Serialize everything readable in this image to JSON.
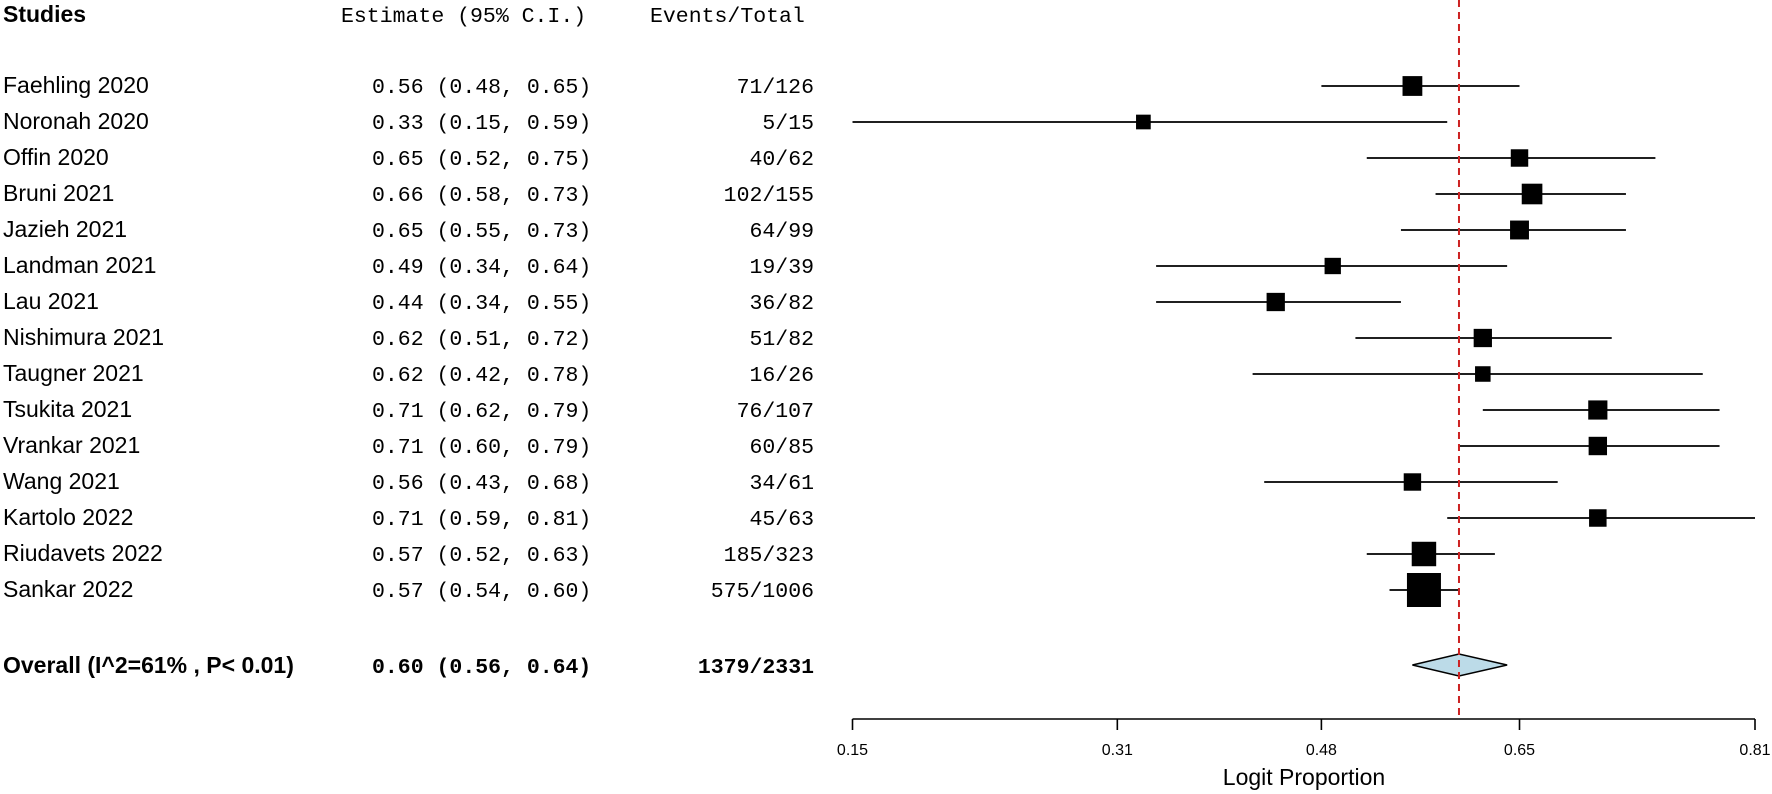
{
  "chart_data": {
    "type": "forest",
    "headers": {
      "studies": "Studies",
      "estimate": "Estimate (95% C.I.)",
      "events": "Events/Total"
    },
    "studies": [
      {
        "label": "Faehling 2020",
        "estimate": 0.56,
        "lower": 0.48,
        "upper": 0.65,
        "estimate_text": "0.56 (0.48, 0.65)",
        "events_text": "71/126",
        "events": 71,
        "total": 126
      },
      {
        "label": "Noronah 2020",
        "estimate": 0.33,
        "lower": 0.15,
        "upper": 0.59,
        "estimate_text": "0.33 (0.15, 0.59)",
        "events_text": "5/15",
        "events": 5,
        "total": 15
      },
      {
        "label": "Offin 2020",
        "estimate": 0.65,
        "lower": 0.52,
        "upper": 0.75,
        "estimate_text": "0.65 (0.52, 0.75)",
        "events_text": "40/62",
        "events": 40,
        "total": 62
      },
      {
        "label": "Bruni 2021",
        "estimate": 0.66,
        "lower": 0.58,
        "upper": 0.73,
        "estimate_text": "0.66 (0.58, 0.73)",
        "events_text": "102/155",
        "events": 102,
        "total": 155
      },
      {
        "label": "Jazieh 2021",
        "estimate": 0.65,
        "lower": 0.55,
        "upper": 0.73,
        "estimate_text": "0.65 (0.55, 0.73)",
        "events_text": "64/99",
        "events": 64,
        "total": 99
      },
      {
        "label": "Landman 2021",
        "estimate": 0.49,
        "lower": 0.34,
        "upper": 0.64,
        "estimate_text": "0.49 (0.34, 0.64)",
        "events_text": "19/39",
        "events": 19,
        "total": 39
      },
      {
        "label": "Lau 2021",
        "estimate": 0.44,
        "lower": 0.34,
        "upper": 0.55,
        "estimate_text": "0.44 (0.34, 0.55)",
        "events_text": "36/82",
        "events": 36,
        "total": 82
      },
      {
        "label": "Nishimura 2021",
        "estimate": 0.62,
        "lower": 0.51,
        "upper": 0.72,
        "estimate_text": "0.62 (0.51, 0.72)",
        "events_text": "51/82",
        "events": 51,
        "total": 82
      },
      {
        "label": "Taugner 2021",
        "estimate": 0.62,
        "lower": 0.42,
        "upper": 0.78,
        "estimate_text": "0.62 (0.42, 0.78)",
        "events_text": "16/26",
        "events": 16,
        "total": 26
      },
      {
        "label": "Tsukita 2021",
        "estimate": 0.71,
        "lower": 0.62,
        "upper": 0.79,
        "estimate_text": "0.71 (0.62, 0.79)",
        "events_text": "76/107",
        "events": 76,
        "total": 107
      },
      {
        "label": "Vrankar 2021",
        "estimate": 0.71,
        "lower": 0.6,
        "upper": 0.79,
        "estimate_text": "0.71 (0.60, 0.79)",
        "events_text": "60/85",
        "events": 60,
        "total": 85
      },
      {
        "label": "Wang 2021",
        "estimate": 0.56,
        "lower": 0.43,
        "upper": 0.68,
        "estimate_text": "0.56 (0.43, 0.68)",
        "events_text": "34/61",
        "events": 34,
        "total": 61
      },
      {
        "label": "Kartolo 2022",
        "estimate": 0.71,
        "lower": 0.59,
        "upper": 0.81,
        "estimate_text": "0.71 (0.59, 0.81)",
        "events_text": "45/63",
        "events": 45,
        "total": 63
      },
      {
        "label": "Riudavets 2022",
        "estimate": 0.57,
        "lower": 0.52,
        "upper": 0.63,
        "estimate_text": "0.57 (0.52, 0.63)",
        "events_text": "185/323",
        "events": 185,
        "total": 323
      },
      {
        "label": "Sankar 2022",
        "estimate": 0.57,
        "lower": 0.54,
        "upper": 0.6,
        "estimate_text": "0.57 (0.54, 0.60)",
        "events_text": "575/1006",
        "events": 575,
        "total": 1006
      }
    ],
    "overall": {
      "label": "Overall (I^2=61% , P< 0.01)",
      "estimate": 0.6,
      "lower": 0.56,
      "upper": 0.64,
      "estimate_text": "0.60 (0.56, 0.64)",
      "events_text": "1379/2331"
    },
    "x_axis": {
      "label": "Logit Proportion",
      "scale": "logit",
      "ticks": [
        0.15,
        0.31,
        0.48,
        0.65,
        0.81
      ],
      "tick_labels": [
        "0.15",
        "0.31",
        "0.48",
        "0.65",
        "0.81"
      ]
    },
    "reference_line": {
      "value": 0.6,
      "color": "#cc2222",
      "style": "dashed"
    },
    "colors": {
      "marker": "#000000",
      "diamond_fill": "#bcdbe8",
      "diamond_stroke": "#000000",
      "axis": "#000000"
    }
  }
}
